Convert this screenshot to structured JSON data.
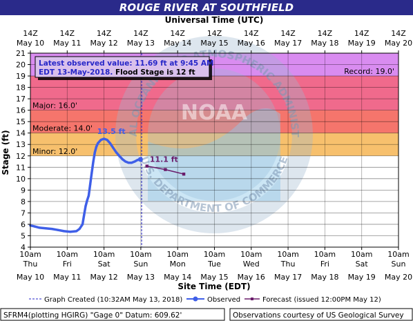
{
  "title": "ROUGE RIVER AT SOUTHFIELD",
  "top_axis_title": "Universal Time (UTC)",
  "bottom_axis_title": "Site Time (EDT)",
  "y_axis_title": "Stage (ft)",
  "annotation": {
    "line1": "Latest observed value: 11.69 ft at 9:45 AM",
    "line2_blue": "EDT 13-May-2018.",
    "line2_black": " Flood Stage is 12 ft"
  },
  "legend": {
    "graph_created": "Graph Created (10:32AM May 13, 2018)",
    "observed": "Observed",
    "forecast": "Forecast (issued 12:00PM May 12)"
  },
  "footer": {
    "left": "SFRM4(plotting HGIRG) \"Gage 0\" Datum: 609.62'",
    "right": "Observations courtesy of US Geological Survey"
  },
  "colors": {
    "title_bar": "#2a2a8a",
    "record_band": "#d98cf0",
    "major_band": "#f06a8c",
    "moderate_band": "#f5756c",
    "minor_band": "#f7c06d",
    "observed": "#3f5fe8",
    "forecast": "#6a1c6a",
    "noaa_watermark": "#9fb6cf"
  },
  "watermark": {
    "logo_text": "NOAA",
    "ring_top": "NATIONAL OCEANIC AND ATMOSPHERIC ADMINISTRATION",
    "ring_bottom": "U.S. DEPARTMENT OF COMMERCE"
  },
  "chart_data": {
    "type": "line",
    "ylabel": "Stage (ft)",
    "xlabel": "Site Time (EDT)",
    "ylim": [
      4,
      21
    ],
    "yticks": [
      4,
      5,
      6,
      7,
      8,
      9,
      10,
      11,
      12,
      13,
      14,
      15,
      16,
      17,
      18,
      19,
      20,
      21
    ],
    "xlim_hours_edt": [
      "2018-05-10 10:00",
      "2018-05-20 10:00"
    ],
    "x_ticks_edt": [
      {
        "time": "10am",
        "day": "Thu",
        "date": "May 10"
      },
      {
        "time": "10am",
        "day": "Fri",
        "date": "May 11"
      },
      {
        "time": "10am",
        "day": "Sat",
        "date": "May 12"
      },
      {
        "time": "10am",
        "day": "Sun",
        "date": "May 13"
      },
      {
        "time": "10am",
        "day": "Mon",
        "date": "May 14"
      },
      {
        "time": "10am",
        "day": "Tue",
        "date": "May 15"
      },
      {
        "time": "10am",
        "day": "Wed",
        "date": "May 16"
      },
      {
        "time": "10am",
        "day": "Thu",
        "date": "May 17"
      },
      {
        "time": "10am",
        "day": "Fri",
        "date": "May 18"
      },
      {
        "time": "10am",
        "day": "Sat",
        "date": "May 19"
      },
      {
        "time": "10am",
        "day": "Sun",
        "date": "May 20"
      }
    ],
    "x_ticks_utc": [
      {
        "time": "14Z",
        "date": "May 10"
      },
      {
        "time": "14Z",
        "date": "May 11"
      },
      {
        "time": "14Z",
        "date": "May 12"
      },
      {
        "time": "14Z",
        "date": "May 13"
      },
      {
        "time": "14Z",
        "date": "May 14"
      },
      {
        "time": "14Z",
        "date": "May 15"
      },
      {
        "time": "14Z",
        "date": "May 16"
      },
      {
        "time": "14Z",
        "date": "May 17"
      },
      {
        "time": "14Z",
        "date": "May 18"
      },
      {
        "time": "14Z",
        "date": "May 19"
      },
      {
        "time": "14Z",
        "date": "May 20"
      }
    ],
    "flood_categories": [
      {
        "label": "Record: 19.0'",
        "low": 19.0,
        "high": 21.0,
        "color_key": "record_band",
        "label_side": "right"
      },
      {
        "label": "Major: 16.0'",
        "low": 16.0,
        "high": 19.0,
        "color_key": "major_band",
        "label_side": "left"
      },
      {
        "label": "Moderate: 14.0'",
        "low": 14.0,
        "high": 16.0,
        "color_key": "moderate_band",
        "label_side": "left"
      },
      {
        "label": "Minor: 12.0'",
        "low": 12.0,
        "high": 14.0,
        "color_key": "minor_band",
        "label_side": "left"
      }
    ],
    "graph_created_edt": "2018-05-13 10:32",
    "series": [
      {
        "name": "Observed",
        "points": [
          [
            "2018-05-10 10:00",
            5.9
          ],
          [
            "2018-05-10 13:00",
            5.8
          ],
          [
            "2018-05-10 16:00",
            5.7
          ],
          [
            "2018-05-10 20:00",
            5.65
          ],
          [
            "2018-05-11 00:00",
            5.6
          ],
          [
            "2018-05-11 04:00",
            5.5
          ],
          [
            "2018-05-11 08:00",
            5.4
          ],
          [
            "2018-05-11 12:00",
            5.35
          ],
          [
            "2018-05-11 16:00",
            5.4
          ],
          [
            "2018-05-11 18:00",
            5.6
          ],
          [
            "2018-05-11 20:00",
            6.0
          ],
          [
            "2018-05-11 21:00",
            6.8
          ],
          [
            "2018-05-11 22:00",
            7.6
          ],
          [
            "2018-05-11 23:00",
            8.1
          ],
          [
            "2018-05-12 00:00",
            8.5
          ],
          [
            "2018-05-12 01:00",
            9.5
          ],
          [
            "2018-05-12 02:00",
            10.5
          ],
          [
            "2018-05-12 03:00",
            11.5
          ],
          [
            "2018-05-12 04:00",
            12.3
          ],
          [
            "2018-05-12 05:00",
            12.8
          ],
          [
            "2018-05-12 06:00",
            13.1
          ],
          [
            "2018-05-12 08:00",
            13.4
          ],
          [
            "2018-05-12 10:00",
            13.5
          ],
          [
            "2018-05-12 12:00",
            13.4
          ],
          [
            "2018-05-12 14:00",
            13.1
          ],
          [
            "2018-05-12 16:00",
            12.7
          ],
          [
            "2018-05-12 18:00",
            12.3
          ],
          [
            "2018-05-12 20:00",
            12.0
          ],
          [
            "2018-05-12 22:00",
            11.7
          ],
          [
            "2018-05-13 00:00",
            11.5
          ],
          [
            "2018-05-13 02:00",
            11.4
          ],
          [
            "2018-05-13 04:00",
            11.4
          ],
          [
            "2018-05-13 06:00",
            11.5
          ],
          [
            "2018-05-13 08:00",
            11.65
          ],
          [
            "2018-05-13 09:45",
            11.69
          ]
        ]
      },
      {
        "name": "Forecast (issued 12:00PM May 12)",
        "points": [
          [
            "2018-05-13 14:00",
            11.1
          ],
          [
            "2018-05-14 02:00",
            10.8
          ],
          [
            "2018-05-14 14:00",
            10.4
          ]
        ]
      }
    ],
    "data_labels": [
      {
        "text": "13.5 ft",
        "x": "2018-05-12 10:00",
        "y": 13.5,
        "series": "Observed"
      },
      {
        "text": "11.1 ft",
        "x": "2018-05-13 14:00",
        "y": 11.1,
        "series": "Forecast (issued 12:00PM May 12)"
      }
    ]
  }
}
